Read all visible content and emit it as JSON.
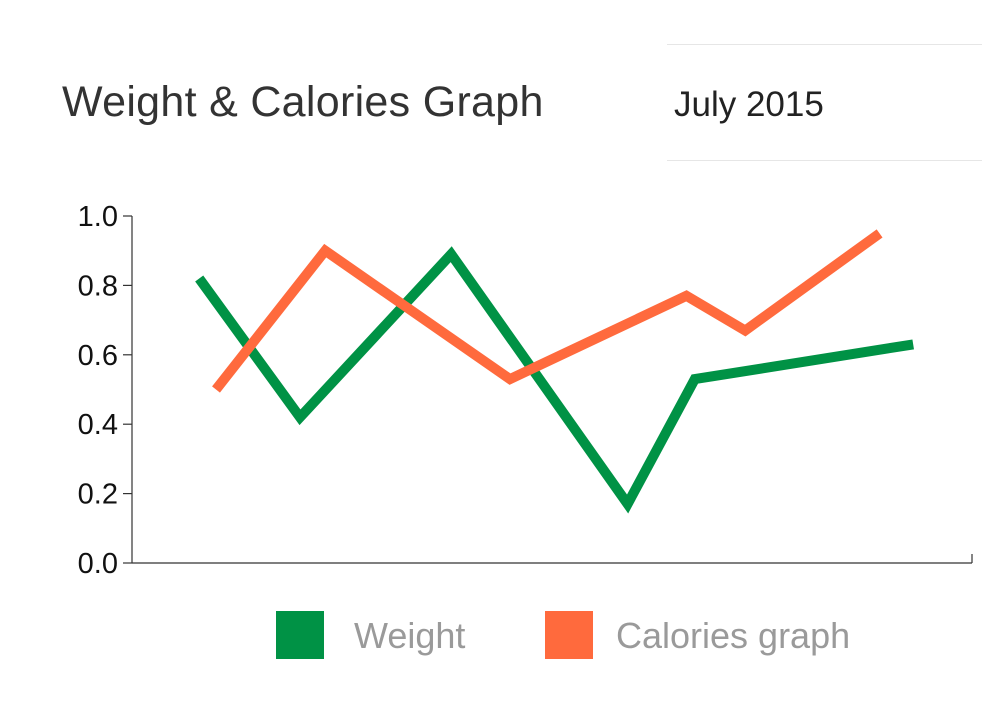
{
  "header": {
    "title": "Weight & Calories Graph",
    "month": "July 2015"
  },
  "colors": {
    "weight": "#009245",
    "calories": "#ff6a3d",
    "axis": "#333333"
  },
  "chart_data": {
    "type": "line",
    "title": "",
    "xlabel": "",
    "ylabel": "",
    "ylim": [
      0,
      1
    ],
    "y_ticks": [
      "0.0",
      "0.2",
      "0.4",
      "0.6",
      "0.8",
      "1.0"
    ],
    "grid": false,
    "legend_position": "bottom",
    "series": [
      {
        "name": "Weight",
        "color": "#009245",
        "x": [
          0.08,
          0.2,
          0.38,
          0.59,
          0.67,
          0.93
        ],
        "values": [
          0.82,
          0.42,
          0.89,
          0.17,
          0.53,
          0.63
        ]
      },
      {
        "name": "Calories graph",
        "color": "#ff6a3d",
        "x": [
          0.1,
          0.23,
          0.45,
          0.66,
          0.73,
          0.89
        ],
        "values": [
          0.5,
          0.9,
          0.53,
          0.77,
          0.67,
          0.95
        ]
      }
    ]
  }
}
